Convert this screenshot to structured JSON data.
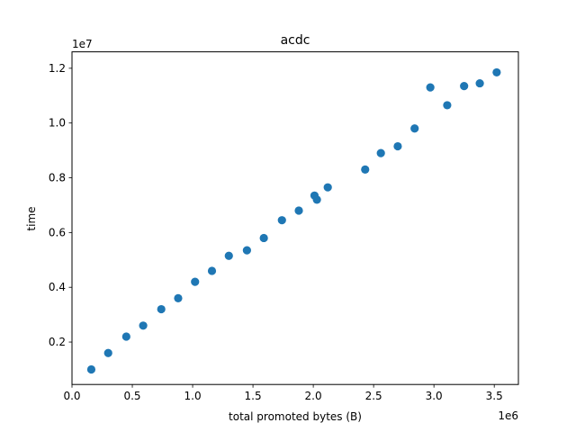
{
  "chart_data": {
    "type": "scatter",
    "title": "acdc",
    "xlabel": "total promoted bytes (B)",
    "ylabel": "time",
    "x_offset_label": "1e6",
    "y_offset_label": "1e7",
    "xlim": [
      0,
      3.7
    ],
    "ylim": [
      0.45,
      12.6
    ],
    "xticks": [
      0.0,
      0.5,
      1.0,
      1.5,
      2.0,
      2.5,
      3.0,
      3.5
    ],
    "xtick_labels": [
      "0.0",
      "0.5",
      "1.0",
      "1.5",
      "2.0",
      "2.5",
      "3.0",
      "3.5"
    ],
    "yticks": [
      2,
      4,
      6,
      8,
      10,
      12
    ],
    "ytick_labels": [
      "0.2",
      "0.4",
      "0.6",
      "0.8",
      "1.0",
      "1.2"
    ],
    "grid": false,
    "marker_color": "#1f77b4",
    "series": [
      {
        "x": [
          0.16,
          0.3,
          0.45,
          0.59,
          0.74,
          0.88,
          1.02,
          1.16,
          1.3,
          1.45,
          1.59,
          1.74,
          1.88,
          2.01,
          2.03,
          2.12,
          2.43,
          2.56,
          2.7,
          2.84,
          2.97,
          3.11,
          3.25,
          3.38,
          3.52
        ],
        "y": [
          1.0,
          1.6,
          2.2,
          2.6,
          3.2,
          3.6,
          4.2,
          4.6,
          5.15,
          5.35,
          5.8,
          6.45,
          6.8,
          7.35,
          7.2,
          7.65,
          8.3,
          8.9,
          9.15,
          9.8,
          11.3,
          10.65,
          11.35,
          11.45,
          11.85
        ]
      }
    ]
  }
}
